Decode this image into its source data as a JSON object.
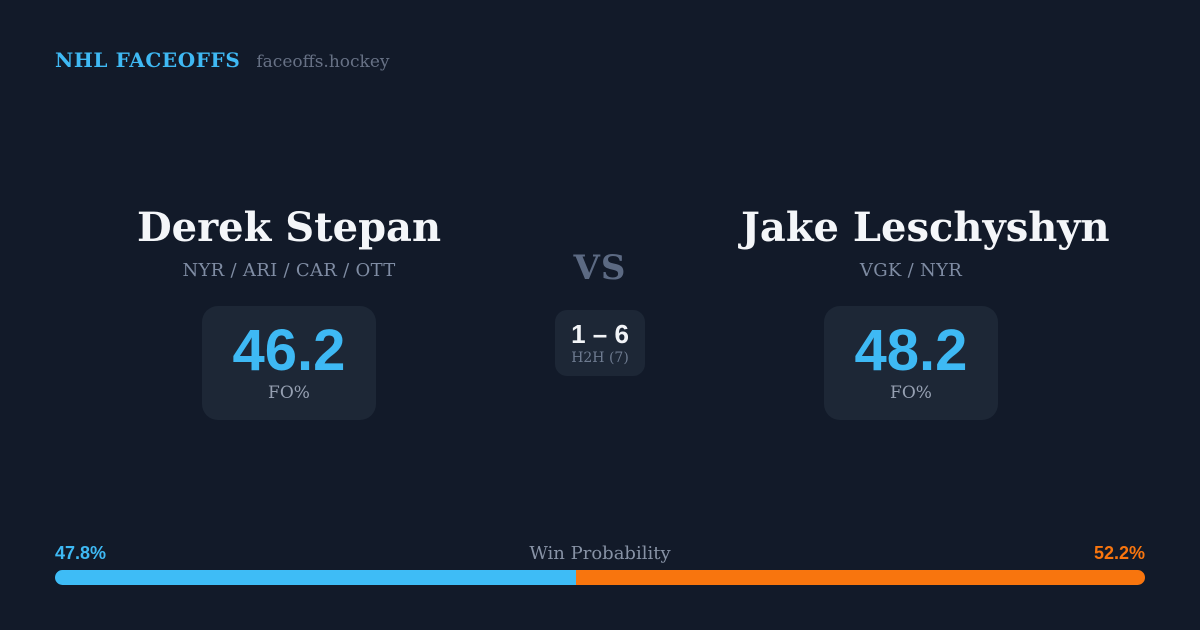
{
  "header": {
    "brand": "NHL FACEOFFS",
    "site": "faceoffs.hockey"
  },
  "matchup": {
    "vs_label": "VS",
    "h2h": {
      "score": "1 – 6",
      "label": "H2H (7)"
    },
    "players": [
      {
        "name": "Derek Stepan",
        "teams": "NYR / ARI / CAR / OTT",
        "fo_pct": "46.2",
        "stat_label": "FO%"
      },
      {
        "name": "Jake Leschyshyn",
        "teams": "VGK / NYR",
        "fo_pct": "48.2",
        "stat_label": "FO%"
      }
    ]
  },
  "win_probability": {
    "title": "Win Probability",
    "left_pct": "47.8%",
    "right_pct": "52.2%",
    "left_value": 47.8,
    "right_value": 52.2
  },
  "colors": {
    "background": "#121a29",
    "card": "#1d2736",
    "accent_blue": "#3eb9f4",
    "accent_orange": "#f8750e",
    "text_primary": "#f4f6f9",
    "text_muted": "#7f8ca3"
  }
}
